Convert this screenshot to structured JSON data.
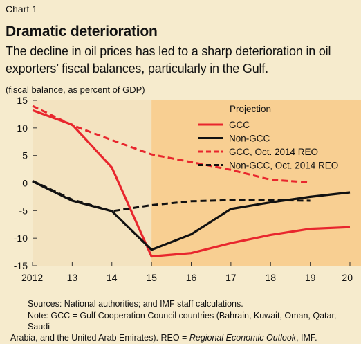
{
  "header": {
    "chart_label": "Chart 1",
    "title": "Dramatic deterioration",
    "subtitle": "The decline in oil prices has led to a sharp deterioration in oil exporters’ fiscal balances, particularly in the Gulf.",
    "units": "(fiscal balance, as percent of GDP)"
  },
  "footer": {
    "sources": "Sources: National authorities; and IMF staff calculations.",
    "note_part1": "Note: GCC = Gulf Cooperation Council countries (Bahrain, Kuwait, Oman, Qatar, Saudi",
    "note_part2": "Arabia, and the United Arab Emirates). REO = ",
    "note_italic": "Regional Economic Outlook",
    "note_part3": ", IMF."
  },
  "colors": {
    "red": "#E8262D",
    "black": "#111111",
    "history_bg": "#F3E3C0",
    "projection_bg": "#F8CF92",
    "page_bg": "#F6EBCD"
  },
  "chart_data": {
    "type": "line",
    "x": [
      2012,
      2013,
      2014,
      2015,
      2016,
      2017,
      2018,
      2019,
      2020
    ],
    "x_tick_labels": [
      "2012",
      "13",
      "14",
      "15",
      "16",
      "17",
      "18",
      "19",
      "20"
    ],
    "ylim": [
      -15,
      15
    ],
    "y_ticks": [
      -15,
      -10,
      -5,
      0,
      5,
      10,
      15
    ],
    "projection_start": 2015,
    "projection_label": "Projection",
    "legend_position": "top-right",
    "series": [
      {
        "name": "GCC",
        "color": "#E8262D",
        "dash": false,
        "values": [
          13.2,
          10.6,
          2.8,
          -13.3,
          -12.7,
          -10.9,
          -9.4,
          -8.3,
          -8.0
        ]
      },
      {
        "name": "Non-GCC",
        "color": "#111111",
        "dash": false,
        "values": [
          0.3,
          -3.2,
          -5.1,
          -12.1,
          -9.3,
          -4.7,
          -3.5,
          -2.5,
          -1.7
        ]
      },
      {
        "name": "GCC, Oct. 2014 REO",
        "color": "#E8262D",
        "dash": true,
        "values": [
          14.0,
          10.5,
          7.8,
          5.2,
          3.8,
          2.4,
          0.6,
          0.1,
          null
        ]
      },
      {
        "name": "Non-GCC, Oct. 2014 REO",
        "color": "#111111",
        "dash": true,
        "values": [
          0.4,
          -3.0,
          -5.1,
          -4.0,
          -3.3,
          -3.1,
          -3.1,
          -3.2,
          null
        ]
      }
    ]
  }
}
